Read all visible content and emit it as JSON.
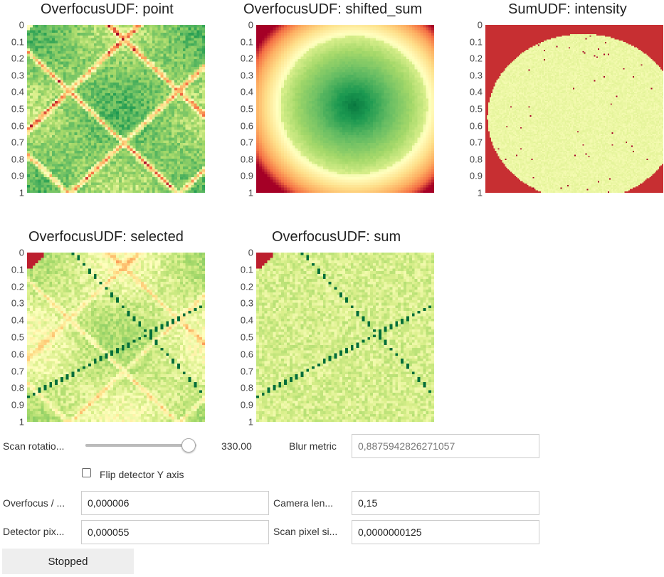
{
  "plots": [
    {
      "id": "point",
      "title": "OverfocusUDF: point",
      "pattern": "point"
    },
    {
      "id": "shifted_sum",
      "title": "OverfocusUDF: shifted_sum",
      "pattern": "blob"
    },
    {
      "id": "intensity",
      "title": "SumUDF: intensity",
      "pattern": "disk"
    },
    {
      "id": "selected",
      "title": "OverfocusUDF: selected",
      "pattern": "selected"
    },
    {
      "id": "sum",
      "title": "OverfocusUDF: sum",
      "pattern": "sum"
    }
  ],
  "y_ticks": [
    "0",
    "0.1",
    "0.2",
    "0.3",
    "0.4",
    "0.5",
    "0.6",
    "0.7",
    "0.8",
    "0.9",
    "1"
  ],
  "colormap": {
    "low": "#006837",
    "mid": "#ffffbf",
    "high": "#a50026"
  },
  "controls": {
    "scan_rotation": {
      "label": "Scan rotatio...",
      "value": "330.00",
      "fraction": 0.92
    },
    "blur_metric": {
      "label": "Blur metric",
      "value": "0,8875942826271057"
    },
    "flip_y": {
      "label": "Flip detector Y axis",
      "checked": false
    },
    "overfocus": {
      "label": "Overfocus / ...",
      "value": "0,000006"
    },
    "camera_length": {
      "label": "Camera len...",
      "value": "0,15"
    },
    "detector_pixel": {
      "label": "Detector pix...",
      "value": "0,000055"
    },
    "scan_pixel": {
      "label": "Scan pixel si...",
      "value": "0,0000000125"
    },
    "status_button": {
      "label": "Stopped"
    }
  }
}
